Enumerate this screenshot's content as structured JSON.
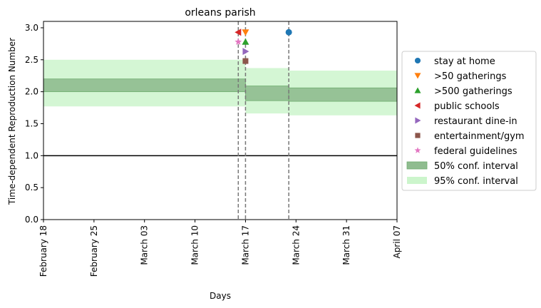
{
  "chart_data": {
    "type": "line",
    "title": "orleans parish",
    "xlabel": "Days",
    "ylabel": "Time-dependent Reproduction Number",
    "x_ticks": [
      "February 18",
      "February 25",
      "March 03",
      "March 10",
      "March 17",
      "March 24",
      "March 31",
      "April 07"
    ],
    "y_ticks": [
      "0.0",
      "0.5",
      "1.0",
      "1.5",
      "2.0",
      "2.5",
      "3.0"
    ],
    "x_range": [
      "2020-02-18",
      "2020-04-07"
    ],
    "ylim": [
      0,
      3.1
    ],
    "grid": false,
    "legend_position": "right, outside plot",
    "reference_line": {
      "y": 1.0,
      "color": "#000000"
    },
    "vertical_lines_dates": [
      "2020-03-16",
      "2020-03-17",
      "2020-03-23"
    ],
    "intervals": [
      {
        "name": "50% conf. interval",
        "color": "#8fbc8f",
        "segments": [
          {
            "x_start": "2020-02-18",
            "x_end": "2020-03-17",
            "low": 2.0,
            "high": 2.2
          },
          {
            "x_start": "2020-03-17",
            "x_end": "2020-03-23",
            "low": 1.86,
            "high": 2.09
          },
          {
            "x_start": "2020-03-23",
            "x_end": "2020-04-07",
            "low": 1.85,
            "high": 2.06
          }
        ]
      },
      {
        "name": "95% conf. interval",
        "color": "#ccf5cc",
        "segments": [
          {
            "x_start": "2020-02-18",
            "x_end": "2020-03-17",
            "low": 1.77,
            "high": 2.5
          },
          {
            "x_start": "2020-03-17",
            "x_end": "2020-03-23",
            "low": 1.66,
            "high": 2.37
          },
          {
            "x_start": "2020-03-23",
            "x_end": "2020-04-07",
            "low": 1.63,
            "high": 2.33
          }
        ]
      }
    ],
    "series": [
      {
        "name": "stay at home",
        "marker": "circle",
        "color": "#1f77b4",
        "x": "2020-03-23",
        "y": 2.93
      },
      {
        "name": ">50 gatherings",
        "marker": "triangle-down",
        "color": "#ff7f0e",
        "x": "2020-03-17",
        "y": 2.93
      },
      {
        "name": ">500 gatherings",
        "marker": "triangle-up",
        "color": "#2ca02c",
        "x": "2020-03-17",
        "y": 2.78
      },
      {
        "name": "public schools",
        "marker": "triangle-left",
        "color": "#d62728",
        "x": "2020-03-16",
        "y": 2.93
      },
      {
        "name": "restaurant dine-in",
        "marker": "triangle-right",
        "color": "#9467bd",
        "x": "2020-03-17",
        "y": 2.63
      },
      {
        "name": "entertainment/gym",
        "marker": "square",
        "color": "#8c564b",
        "x": "2020-03-17",
        "y": 2.48
      },
      {
        "name": "federal guidelines",
        "marker": "star",
        "color": "#e377c2",
        "x": "2020-03-16",
        "y": 2.78
      }
    ],
    "legend": [
      {
        "label": "stay at home",
        "kind": "marker",
        "marker": "circle",
        "color": "#1f77b4"
      },
      {
        "label": ">50 gatherings",
        "kind": "marker",
        "marker": "triangle-down",
        "color": "#ff7f0e"
      },
      {
        "label": ">500 gatherings",
        "kind": "marker",
        "marker": "triangle-up",
        "color": "#2ca02c"
      },
      {
        "label": "public schools",
        "kind": "marker",
        "marker": "triangle-left",
        "color": "#d62728"
      },
      {
        "label": "restaurant dine-in",
        "kind": "marker",
        "marker": "triangle-right",
        "color": "#9467bd"
      },
      {
        "label": "entertainment/gym",
        "kind": "marker",
        "marker": "square",
        "color": "#8c564b"
      },
      {
        "label": "federal guidelines",
        "kind": "marker",
        "marker": "star",
        "color": "#e377c2"
      },
      {
        "label": "50% conf. interval",
        "kind": "patch",
        "color": "#8fbc8f"
      },
      {
        "label": "95% conf. interval",
        "kind": "patch",
        "color": "#ccf5cc"
      }
    ]
  }
}
